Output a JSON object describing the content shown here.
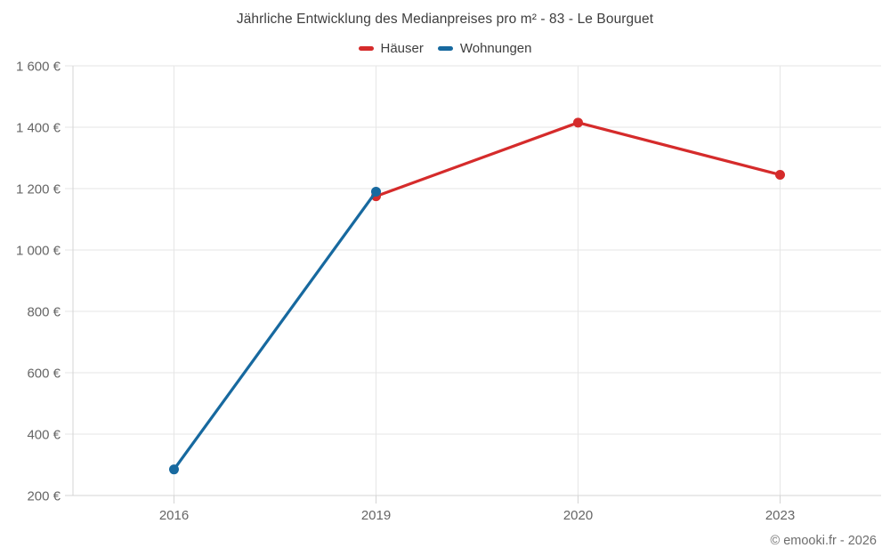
{
  "title": "Jährliche Entwicklung des Medianpreises pro m² - 83 - Le Bourguet",
  "footer": "© emooki.fr - 2026",
  "theme": {
    "background": "#ffffff",
    "grid_color": "#e6e6e6",
    "axis_color": "#d4d4d4",
    "title_color": "#3e3e3e",
    "tick_label_color": "#666666",
    "footer_color": "#6e6e6e",
    "haeuser_red": "#d52b2b",
    "wohnungen_blue": "#17699f"
  },
  "legend": {
    "items": [
      {
        "label": "Häuser",
        "color": "#d52b2b"
      },
      {
        "label": "Wohnungen",
        "color": "#17699f"
      }
    ]
  },
  "chart_data": {
    "type": "line",
    "title": "Jährliche Entwicklung des Medianpreises pro m² - 83 - Le Bourguet",
    "categories": [
      "2016",
      "2019",
      "2020",
      "2023"
    ],
    "series": [
      {
        "name": "Häuser",
        "color": "#d52b2b",
        "values": [
          null,
          1175,
          1415,
          1245
        ]
      },
      {
        "name": "Wohnungen",
        "color": "#17699f",
        "values": [
          285,
          1190,
          null,
          null
        ]
      }
    ],
    "xlabel": "",
    "ylabel": "",
    "ylim": [
      200,
      1600
    ],
    "ytick_step": 200,
    "yticks": [
      {
        "value": 200,
        "label": "200 €"
      },
      {
        "value": 400,
        "label": "400 €"
      },
      {
        "value": 600,
        "label": "600 €"
      },
      {
        "value": 800,
        "label": "800 €"
      },
      {
        "value": 1000,
        "label": "1 000 €"
      },
      {
        "value": 1200,
        "label": "1 200 €"
      },
      {
        "value": 1400,
        "label": "1 400 €"
      },
      {
        "value": 1600,
        "label": "1 600 €"
      }
    ],
    "grid": true,
    "legend_position": "top"
  }
}
